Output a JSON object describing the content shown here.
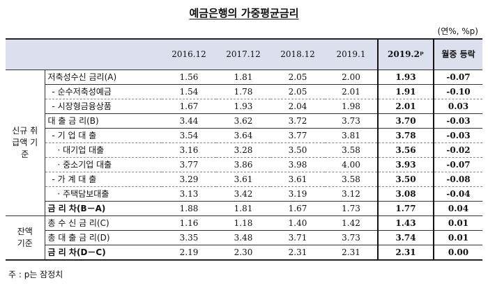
{
  "title": "예금은행의 가중평균금리",
  "unit": "(연%, %p)",
  "note": "주 : p는 잠정치",
  "columns": [
    "2016.12",
    "2017.12",
    "2018.12",
    "2019.1",
    "2019.2ᵖ",
    "월중 등락"
  ],
  "groups": [
    {
      "label": "신규 취급액 기준"
    },
    {
      "label": "잔액 기준"
    }
  ],
  "rows": [
    {
      "label": "저축성수신 금리(A)",
      "values": [
        "1.56",
        "1.81",
        "2.05",
        "2.00",
        "1.93",
        "-0.07"
      ]
    },
    {
      "label": "- 순수저축성예금",
      "values": [
        "1.54",
        "1.78",
        "2.05",
        "2.01",
        "1.91",
        "-0.10"
      ]
    },
    {
      "label": "- 시장형금융상품",
      "values": [
        "1.67",
        "1.93",
        "2.04",
        "1.98",
        "2.01",
        "0.03"
      ]
    },
    {
      "label": "대 출 금 리(B)",
      "values": [
        "3.44",
        "3.62",
        "3.72",
        "3.73",
        "3.70",
        "-0.03"
      ]
    },
    {
      "label": "- 기 업 대 출",
      "values": [
        "3.54",
        "3.64",
        "3.77",
        "3.81",
        "3.78",
        "-0.03"
      ]
    },
    {
      "label": "· 대기업 대출",
      "values": [
        "3.16",
        "3.28",
        "3.50",
        "3.58",
        "3.56",
        "-0.02"
      ]
    },
    {
      "label": "· 중소기업 대출",
      "values": [
        "3.77",
        "3.86",
        "3.98",
        "4.00",
        "3.93",
        "-0.07"
      ]
    },
    {
      "label": "- 가 계 대 출",
      "values": [
        "3.29",
        "3.61",
        "3.61",
        "3.58",
        "3.50",
        "-0.08"
      ]
    },
    {
      "label": "· 주택담보대출",
      "values": [
        "3.13",
        "3.42",
        "3.19",
        "3.12",
        "3.08",
        "-0.04"
      ]
    },
    {
      "label": "금 리 차(B－A)",
      "values": [
        "1.88",
        "1.81",
        "1.67",
        "1.73",
        "1.77",
        "0.04"
      ]
    },
    {
      "label": "총 수 신 금 리(C)",
      "values": [
        "1.16",
        "1.18",
        "1.40",
        "1.42",
        "1.43",
        "0.01"
      ]
    },
    {
      "label": "총 대 출 금 리(D)",
      "values": [
        "3.35",
        "3.48",
        "3.71",
        "3.73",
        "3.74",
        "0.01"
      ]
    },
    {
      "label": "금 리 차(D－C)",
      "values": [
        "2.19",
        "2.30",
        "2.31",
        "2.31",
        "2.31",
        "0.00"
      ]
    }
  ]
}
